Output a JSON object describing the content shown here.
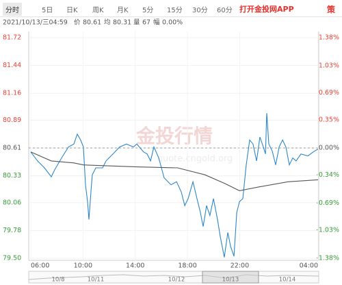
{
  "tabs": [
    "分时",
    "5日",
    "日K",
    "周K",
    "月K",
    "5分",
    "15分",
    "30分",
    "60分"
  ],
  "app_button": "打开金投网APP",
  "side_button": "策",
  "info": {
    "datetime": "2021/10/13/三04:59",
    "price_label": "价",
    "price": "80.61",
    "avg_label": "均",
    "avg": "80.31",
    "vol_label": "量",
    "vol": "67",
    "range_label": "幅",
    "range": "0.00%"
  },
  "watermark": {
    "brand": "金投行情",
    "url": "quote.cngold.org"
  },
  "navigator": {
    "dates": [
      "10/8",
      "10/11",
      "10/12",
      "10/13",
      "10/14"
    ]
  },
  "chart_data": {
    "type": "line",
    "xlim": [
      6,
      28
    ],
    "xticks": [
      {
        "value": 6,
        "label": "06:00"
      },
      {
        "value": 10,
        "label": "10:00"
      },
      {
        "value": 14,
        "label": "14:00"
      },
      {
        "value": 18,
        "label": "18:00"
      },
      {
        "value": 22,
        "label": "22:00"
      },
      {
        "value": 28,
        "label": "04:00"
      }
    ],
    "ylim": [
      79.5,
      81.72
    ],
    "yticks": [
      81.72,
      81.44,
      81.16,
      80.89,
      80.61,
      80.33,
      80.06,
      79.78,
      {
        "value": 79.5,
        "label": "79.50"
      }
    ],
    "y2lim": [
      -1.38,
      1.38
    ],
    "y2ticks": [
      {
        "value": 1.38,
        "label": "1.38%"
      },
      {
        "value": 1.03,
        "label": "1.03%"
      },
      {
        "value": 0.69,
        "label": "0.69%"
      },
      {
        "value": 0.35,
        "label": "0.35%"
      },
      {
        "value": 0,
        "label": "0.00%"
      },
      {
        "value": -0.34,
        "label": "-0.34%"
      },
      {
        "value": -0.69,
        "label": "-0.69%"
      },
      {
        "value": -1.03,
        "label": "-1.03%"
      },
      {
        "value": -1.38,
        "label": "-1.38%"
      }
    ],
    "baseline": 80.61,
    "up_color": "#e8443a",
    "down_color": "#3a9b3a",
    "grid": true,
    "series": [
      {
        "color": "#2b86c9",
        "x": [
          6.0,
          6.52,
          7.05,
          7.57,
          7.83,
          8.36,
          8.88,
          9.3,
          9.56,
          9.82,
          10.03,
          10.19,
          10.35,
          10.45,
          10.61,
          10.71,
          10.98,
          11.5,
          11.76,
          12.29,
          12.81,
          13.33,
          13.86,
          14.12,
          14.64,
          14.91,
          15.17,
          15.43,
          15.8,
          16.21,
          16.74,
          17.16,
          17.52,
          17.79,
          18.05,
          18.42,
          18.73,
          18.99,
          19.2,
          19.46,
          19.72,
          19.99,
          20.3,
          20.51,
          20.82,
          21.09,
          21.3,
          21.56,
          21.77,
          21.98,
          22.24,
          22.5,
          22.76,
          23.02,
          23.29,
          23.55,
          23.81,
          23.97,
          24.07,
          24.23,
          24.49,
          24.75,
          25.02,
          25.28,
          25.54,
          25.8,
          26.06,
          26.32,
          26.69,
          27.22,
          27.63,
          28.0
        ],
        "values": [
          80.57,
          80.48,
          80.41,
          80.32,
          80.39,
          80.51,
          80.62,
          80.65,
          80.75,
          80.69,
          80.62,
          80.24,
          80.07,
          79.89,
          80.17,
          80.34,
          80.41,
          80.41,
          80.48,
          80.55,
          80.62,
          80.65,
          80.62,
          80.65,
          80.57,
          80.55,
          80.48,
          80.62,
          80.51,
          80.31,
          80.24,
          80.27,
          80.17,
          80.03,
          80.1,
          80.27,
          80.1,
          79.96,
          79.82,
          80.03,
          79.93,
          80.1,
          79.89,
          79.72,
          79.51,
          79.76,
          79.62,
          79.52,
          79.96,
          80.07,
          80.1,
          80.44,
          80.69,
          80.65,
          80.48,
          80.72,
          80.62,
          80.55,
          80.96,
          80.65,
          80.58,
          80.44,
          80.62,
          80.69,
          80.62,
          80.44,
          80.51,
          80.48,
          80.55,
          80.53,
          80.57,
          80.6
        ]
      },
      {
        "color": "#555555",
        "x": [
          6.0,
          7.57,
          9.3,
          10.03,
          14.12,
          17.24,
          19.34,
          20.91,
          21.98,
          23.55,
          25.7,
          28.0
        ],
        "values": [
          80.57,
          80.48,
          80.46,
          80.44,
          80.42,
          80.41,
          80.34,
          80.25,
          80.18,
          80.22,
          80.27,
          80.29
        ]
      }
    ]
  }
}
